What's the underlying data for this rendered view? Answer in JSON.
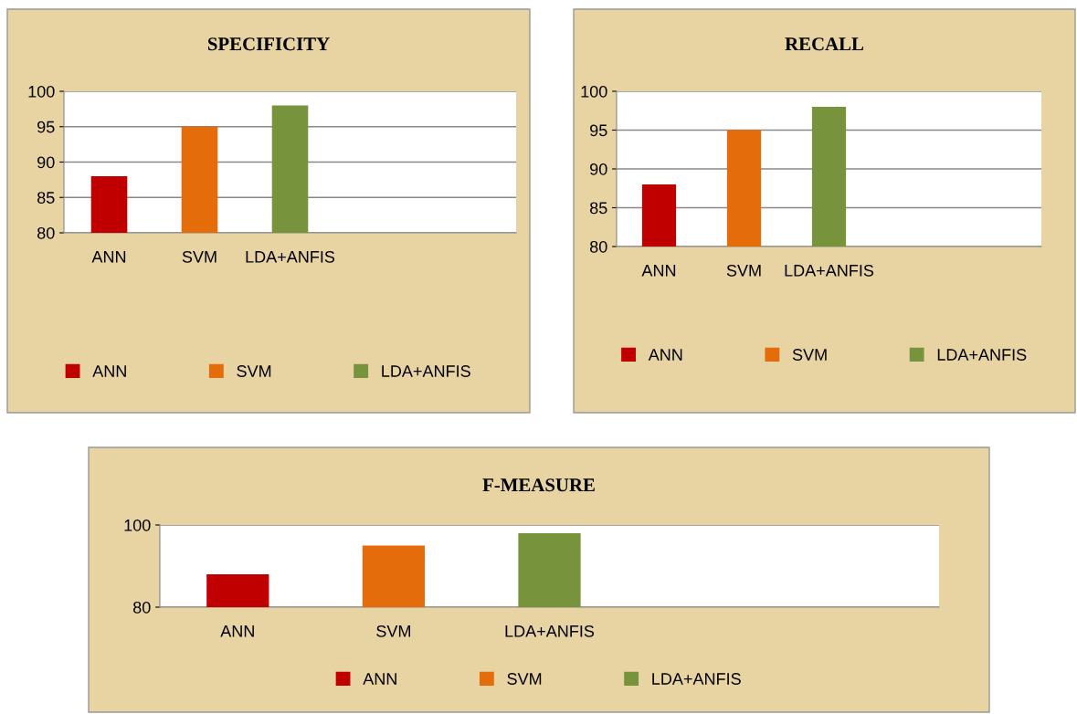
{
  "chart_data": [
    {
      "type": "bar",
      "title": "SPECIFICITY",
      "categories": [
        "ANN",
        "SVM",
        "LDA+ANFIS",
        null,
        null
      ],
      "ylim": [
        80,
        100
      ],
      "yticks": [
        80,
        85,
        90,
        95,
        100
      ],
      "grid": "y",
      "legend": "bottom",
      "series": [
        {
          "name": "ANN",
          "color": "#c00000",
          "values": [
            88,
            null,
            null,
            null,
            null
          ]
        },
        {
          "name": "SVM",
          "color": "#e46c0a",
          "values": [
            null,
            95,
            null,
            null,
            null
          ]
        },
        {
          "name": "LDA+ANFIS",
          "color": "#77933c",
          "values": [
            null,
            null,
            98,
            null,
            null
          ]
        }
      ]
    },
    {
      "type": "bar",
      "title": "RECALL",
      "categories": [
        "ANN",
        "SVM",
        "LDA+ANFIS",
        null,
        null
      ],
      "ylim": [
        80,
        100
      ],
      "yticks": [
        80,
        85,
        90,
        95,
        100
      ],
      "grid": "y",
      "legend": "bottom",
      "series": [
        {
          "name": "ANN",
          "color": "#c00000",
          "values": [
            88,
            null,
            null,
            null,
            null
          ]
        },
        {
          "name": "SVM",
          "color": "#e46c0a",
          "values": [
            null,
            95,
            null,
            null,
            null
          ]
        },
        {
          "name": "LDA+ANFIS",
          "color": "#77933c",
          "values": [
            null,
            null,
            98,
            null,
            null
          ]
        }
      ]
    },
    {
      "type": "bar",
      "title": "F-MEASURE",
      "categories": [
        "ANN",
        "SVM",
        "LDA+ANFIS",
        null,
        null
      ],
      "ylim": [
        80,
        100
      ],
      "yticks": [
        80,
        100
      ],
      "grid": "y",
      "legend": "bottom",
      "series": [
        {
          "name": "ANN",
          "color": "#c00000",
          "values": [
            88,
            null,
            null,
            null,
            null
          ]
        },
        {
          "name": "SVM",
          "color": "#e46c0a",
          "values": [
            null,
            95,
            null,
            null,
            null
          ]
        },
        {
          "name": "LDA+ANFIS",
          "color": "#77933c",
          "values": [
            null,
            null,
            98,
            null,
            null
          ]
        }
      ]
    }
  ]
}
